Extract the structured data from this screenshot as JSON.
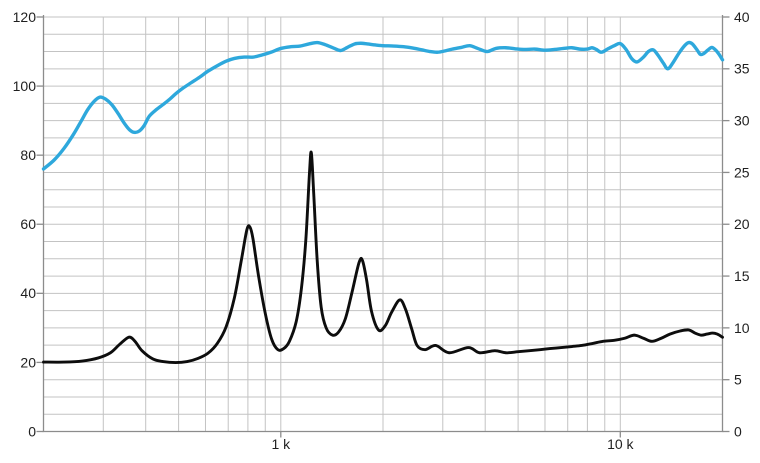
{
  "chart_data": {
    "type": "line",
    "title": "",
    "grid": true,
    "legend": "none",
    "background": "#ffffff",
    "x_axis": {
      "scale": "log",
      "min": 200,
      "max": 20000,
      "tick_labels": [
        {
          "f": 1000,
          "label": "1 k"
        },
        {
          "f": 10000,
          "label": "10 k"
        }
      ],
      "gridlines": [
        300,
        400,
        500,
        600,
        700,
        800,
        900,
        1000,
        2000,
        3000,
        4000,
        5000,
        6000,
        7000,
        8000,
        9000,
        10000
      ]
    },
    "left_axis": {
      "min": 0,
      "max": 120,
      "major_step": 20,
      "minor_step": 5,
      "labels": [
        "120",
        "100",
        "80",
        "60",
        "40",
        "20",
        "0"
      ],
      "label_values": [
        120,
        100,
        80,
        60,
        40,
        20,
        0
      ]
    },
    "right_axis": {
      "min": 0,
      "max": 40,
      "major_step": 5,
      "labels": [
        "40",
        "35",
        "30",
        "25",
        "20",
        "15",
        "10",
        "5",
        "0"
      ],
      "label_values": [
        40,
        35,
        30,
        25,
        20,
        15,
        10,
        5,
        0
      ]
    },
    "colors": {
      "blue_curve": "#2EA8DC",
      "black_curve": "#0d0d0d",
      "gridline": "#c3c3c3",
      "axis": "#8c8c8c",
      "label": "#1f1f1f"
    },
    "series": [
      {
        "name": "black-curve",
        "axis": "right",
        "color": "#0d0d0d",
        "stroke_width": 2.9,
        "points": [
          [
            200,
            6.7
          ],
          [
            230,
            6.7
          ],
          [
            260,
            6.8
          ],
          [
            290,
            7.1
          ],
          [
            315,
            7.6
          ],
          [
            335,
            8.4
          ],
          [
            357,
            9.1
          ],
          [
            372,
            8.7
          ],
          [
            390,
            7.8
          ],
          [
            420,
            7.0
          ],
          [
            450,
            6.75
          ],
          [
            490,
            6.65
          ],
          [
            530,
            6.75
          ],
          [
            570,
            7.05
          ],
          [
            610,
            7.55
          ],
          [
            650,
            8.5
          ],
          [
            690,
            10.1
          ],
          [
            730,
            12.9
          ],
          [
            765,
            16.5
          ],
          [
            795,
            19.5
          ],
          [
            812,
            19.7
          ],
          [
            828,
            18.6
          ],
          [
            860,
            15.0
          ],
          [
            900,
            11.4
          ],
          [
            940,
            8.9
          ],
          [
            980,
            7.9
          ],
          [
            1020,
            8.0
          ],
          [
            1060,
            8.7
          ],
          [
            1110,
            10.6
          ],
          [
            1150,
            13.8
          ],
          [
            1185,
            18.5
          ],
          [
            1215,
            25.0
          ],
          [
            1230,
            26.9
          ],
          [
            1250,
            23.0
          ],
          [
            1280,
            16.5
          ],
          [
            1315,
            12.0
          ],
          [
            1360,
            10.0
          ],
          [
            1420,
            9.3
          ],
          [
            1480,
            9.6
          ],
          [
            1550,
            10.9
          ],
          [
            1620,
            13.4
          ],
          [
            1700,
            16.3
          ],
          [
            1740,
            16.5
          ],
          [
            1790,
            14.6
          ],
          [
            1850,
            11.6
          ],
          [
            1940,
            9.8
          ],
          [
            2030,
            10.2
          ],
          [
            2120,
            11.5
          ],
          [
            2240,
            12.7
          ],
          [
            2330,
            11.8
          ],
          [
            2430,
            9.9
          ],
          [
            2520,
            8.3
          ],
          [
            2660,
            7.9
          ],
          [
            2860,
            8.3
          ],
          [
            3130,
            7.6
          ],
          [
            3570,
            8.1
          ],
          [
            3850,
            7.6
          ],
          [
            4270,
            7.8
          ],
          [
            4600,
            7.6
          ],
          [
            5000,
            7.7
          ],
          [
            5400,
            7.8
          ],
          [
            5800,
            7.9
          ],
          [
            6200,
            8.0
          ],
          [
            6700,
            8.1
          ],
          [
            7200,
            8.2
          ],
          [
            7700,
            8.3
          ],
          [
            8300,
            8.5
          ],
          [
            8900,
            8.7
          ],
          [
            9600,
            8.8
          ],
          [
            10300,
            9.0
          ],
          [
            11000,
            9.3
          ],
          [
            11700,
            9.0
          ],
          [
            12400,
            8.7
          ],
          [
            13200,
            9.0
          ],
          [
            14000,
            9.4
          ],
          [
            15000,
            9.7
          ],
          [
            15900,
            9.8
          ],
          [
            16600,
            9.5
          ],
          [
            17300,
            9.3
          ],
          [
            18000,
            9.4
          ],
          [
            18700,
            9.5
          ],
          [
            19300,
            9.4
          ],
          [
            20000,
            9.1
          ]
        ]
      },
      {
        "name": "blue-curve",
        "axis": "left",
        "color": "#2EA8DC",
        "stroke_width": 3.4,
        "points": [
          [
            200,
            76.0
          ],
          [
            215,
            78.6
          ],
          [
            230,
            82.0
          ],
          [
            245,
            86.0
          ],
          [
            258,
            89.8
          ],
          [
            270,
            93.2
          ],
          [
            282,
            95.6
          ],
          [
            293,
            96.8
          ],
          [
            305,
            96.2
          ],
          [
            318,
            94.6
          ],
          [
            332,
            92.0
          ],
          [
            345,
            89.4
          ],
          [
            358,
            87.4
          ],
          [
            370,
            86.6
          ],
          [
            383,
            87.0
          ],
          [
            396,
            88.6
          ],
          [
            410,
            91.3
          ],
          [
            430,
            93.2
          ],
          [
            452,
            94.8
          ],
          [
            472,
            96.3
          ],
          [
            492,
            97.9
          ],
          [
            515,
            99.4
          ],
          [
            545,
            101.0
          ],
          [
            577,
            102.6
          ],
          [
            610,
            104.3
          ],
          [
            650,
            105.9
          ],
          [
            690,
            107.2
          ],
          [
            730,
            108.0
          ],
          [
            780,
            108.4
          ],
          [
            830,
            108.4
          ],
          [
            880,
            109.0
          ],
          [
            935,
            109.8
          ],
          [
            1000,
            110.9
          ],
          [
            1070,
            111.4
          ],
          [
            1140,
            111.6
          ],
          [
            1210,
            112.2
          ],
          [
            1280,
            112.6
          ],
          [
            1350,
            112.0
          ],
          [
            1430,
            111.0
          ],
          [
            1500,
            110.3
          ],
          [
            1570,
            111.2
          ],
          [
            1650,
            112.2
          ],
          [
            1720,
            112.4
          ],
          [
            1800,
            112.2
          ],
          [
            1900,
            111.9
          ],
          [
            2000,
            111.7
          ],
          [
            2150,
            111.6
          ],
          [
            2300,
            111.4
          ],
          [
            2450,
            111.0
          ],
          [
            2600,
            110.5
          ],
          [
            2750,
            110.0
          ],
          [
            2900,
            109.8
          ],
          [
            3050,
            110.2
          ],
          [
            3200,
            110.7
          ],
          [
            3400,
            111.2
          ],
          [
            3600,
            111.7
          ],
          [
            3800,
            110.9
          ],
          [
            4050,
            110.0
          ],
          [
            4300,
            110.9
          ],
          [
            4600,
            111.1
          ],
          [
            4900,
            110.8
          ],
          [
            5200,
            110.6
          ],
          [
            5600,
            110.7
          ],
          [
            6000,
            110.4
          ],
          [
            6400,
            110.6
          ],
          [
            6800,
            110.9
          ],
          [
            7200,
            111.1
          ],
          [
            7600,
            110.7
          ],
          [
            8000,
            110.7
          ],
          [
            8250,
            111.1
          ],
          [
            8500,
            110.6
          ],
          [
            8800,
            109.8
          ],
          [
            9200,
            110.8
          ],
          [
            9600,
            111.7
          ],
          [
            10000,
            112.3
          ],
          [
            10400,
            110.6
          ],
          [
            10800,
            108.0
          ],
          [
            11200,
            107.0
          ],
          [
            11700,
            108.4
          ],
          [
            12100,
            110.0
          ],
          [
            12500,
            110.5
          ],
          [
            12900,
            109.0
          ],
          [
            13400,
            106.6
          ],
          [
            13800,
            105.0
          ],
          [
            14300,
            106.8
          ],
          [
            14900,
            109.6
          ],
          [
            15500,
            111.8
          ],
          [
            15900,
            112.6
          ],
          [
            16300,
            112.2
          ],
          [
            16800,
            110.6
          ],
          [
            17200,
            109.2
          ],
          [
            17600,
            109.4
          ],
          [
            18100,
            110.4
          ],
          [
            18600,
            111.2
          ],
          [
            19100,
            110.4
          ],
          [
            19500,
            109.3
          ],
          [
            20000,
            107.6
          ]
        ]
      }
    ]
  }
}
